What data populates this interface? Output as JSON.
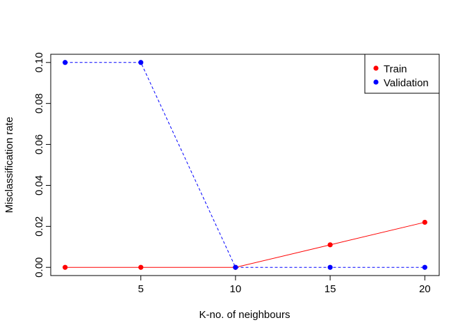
{
  "chart_data": {
    "type": "line",
    "title": "",
    "xlabel": "K-no. of neighbours",
    "ylabel": "Misclassification rate",
    "x": [
      1,
      5,
      10,
      15,
      20
    ],
    "xlim": [
      0.24,
      20.76
    ],
    "ylim": [
      -0.004,
      0.104
    ],
    "xticks": [
      5,
      10,
      15,
      20
    ],
    "yticks": [
      0.0,
      0.02,
      0.04,
      0.06,
      0.08,
      0.1
    ],
    "ytick_labels": [
      "0.00",
      "0.02",
      "0.04",
      "0.06",
      "0.08",
      "0.10"
    ],
    "grid": false,
    "legend_position": "top-right",
    "series": [
      {
        "name": "Train",
        "values": [
          0,
          0,
          0,
          0.011,
          0.022
        ],
        "color": "#ff0000",
        "line_style": "solid"
      },
      {
        "name": "Validation",
        "values": [
          0.1,
          0.1,
          0,
          0,
          0
        ],
        "color": "#0000ff",
        "line_style": "dashed"
      }
    ]
  }
}
